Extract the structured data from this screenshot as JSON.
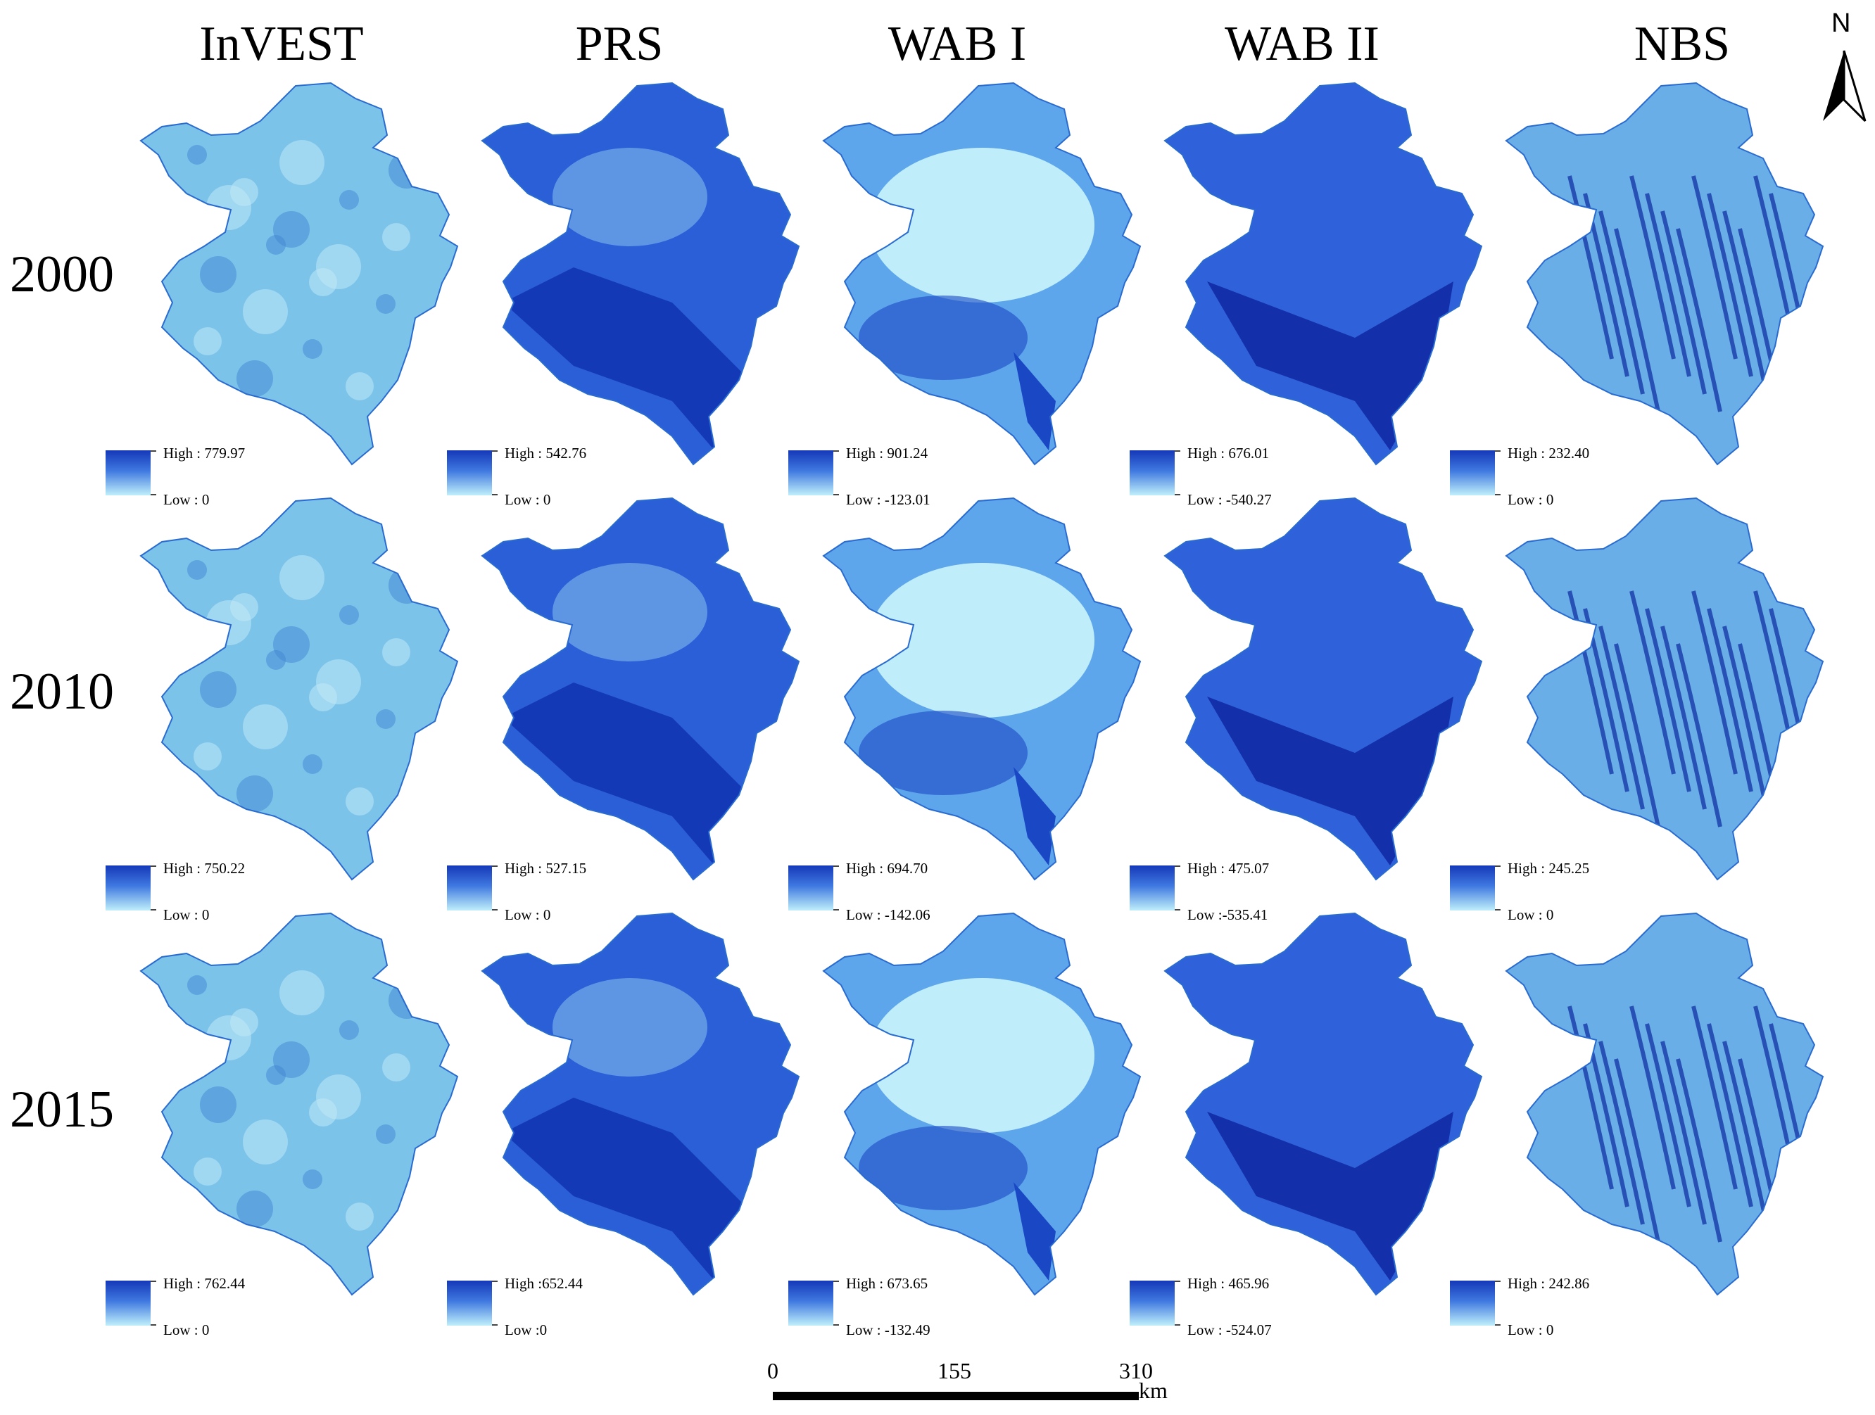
{
  "columns": [
    "InVEST",
    "PRS",
    "WAB I",
    "WAB II",
    "NBS"
  ],
  "rows": [
    "2000",
    "2010",
    "2015"
  ],
  "legends": [
    [
      {
        "high": "High : 779.97",
        "low": "Low : 0"
      },
      {
        "high": "High : 542.76",
        "low": "Low : 0"
      },
      {
        "high": "High : 901.24",
        "low": "Low : -123.01"
      },
      {
        "high": "High : 676.01",
        "low": "Low : -540.27"
      },
      {
        "high": "High : 232.40",
        "low": "Low : 0"
      }
    ],
    [
      {
        "high": "High : 750.22",
        "low": "Low : 0"
      },
      {
        "high": "High : 527.15",
        "low": "Low : 0"
      },
      {
        "high": "High : 694.70",
        "low": "Low : -142.06"
      },
      {
        "high": "High : 475.07",
        "low": "Low :-535.41"
      },
      {
        "high": "High : 245.25",
        "low": "Low : 0"
      }
    ],
    [
      {
        "high": "High : 762.44",
        "low": "Low : 0"
      },
      {
        "high": "High :652.44",
        "low": "Low :0"
      },
      {
        "high": "High : 673.65",
        "low": "Low : -132.49"
      },
      {
        "high": "High : 465.96",
        "low": "Low : -524.07"
      },
      {
        "high": "High : 242.86",
        "low": "Low : 0"
      }
    ]
  ],
  "north_arrow": {
    "label": "N"
  },
  "scale_bar": {
    "ticks": [
      "0",
      "155",
      "310"
    ],
    "unit": "km"
  },
  "colors": {
    "dark_blue": "#0a1f9e",
    "mid_blue": "#3c6fe0",
    "light_blue": "#bfeffa"
  }
}
